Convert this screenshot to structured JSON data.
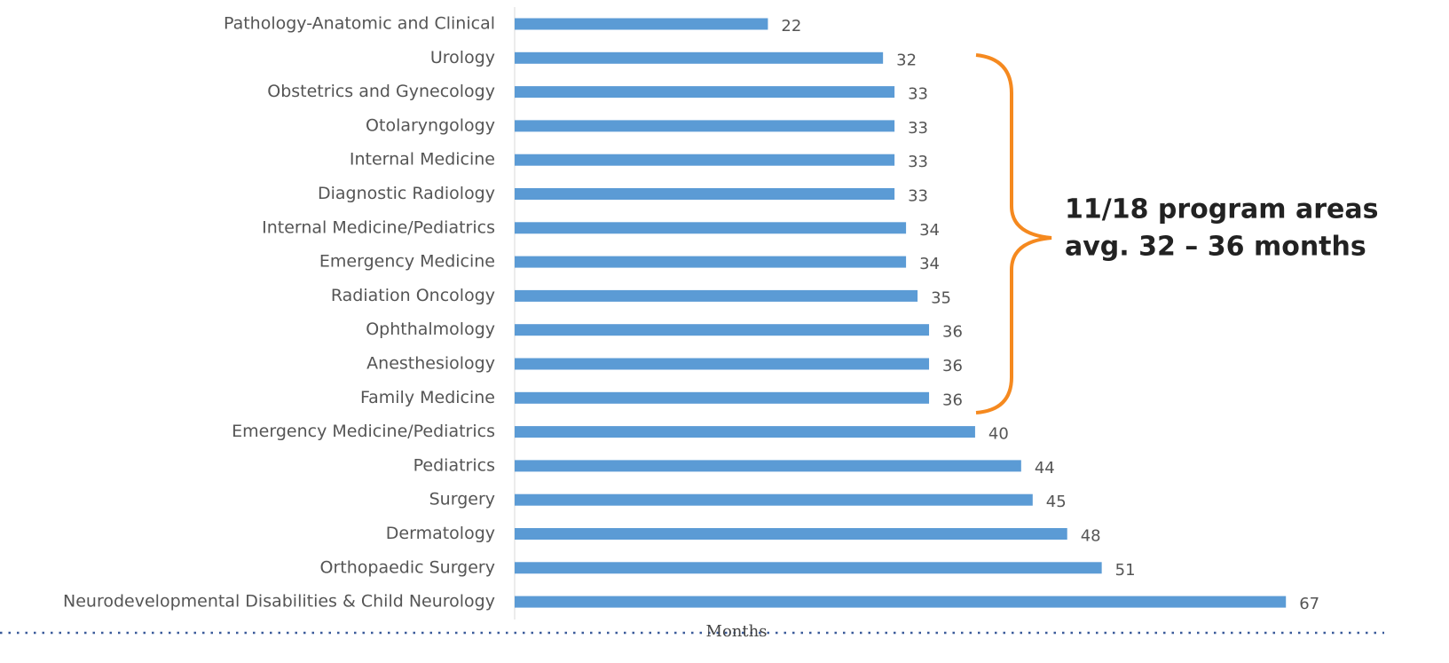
{
  "chart_data": {
    "type": "bar",
    "orientation": "horizontal",
    "categories": [
      "Pathology-Anatomic and Clinical",
      "Urology",
      "Obstetrics and Gynecology",
      "Otolaryngology",
      "Internal Medicine",
      "Diagnostic Radiology",
      "Internal Medicine/Pediatrics",
      "Emergency Medicine",
      "Radiation Oncology",
      "Ophthalmology",
      "Anesthesiology",
      "Family Medicine",
      "Emergency Medicine/Pediatrics",
      "Pediatrics",
      "Surgery",
      "Dermatology",
      "Orthopaedic Surgery",
      "Neurodevelopmental Disabilities & Child Neurology"
    ],
    "values": [
      22,
      32,
      33,
      33,
      33,
      33,
      34,
      34,
      35,
      36,
      36,
      36,
      40,
      44,
      45,
      48,
      51,
      67
    ],
    "color": "#5b9bd5",
    "xlim": [
      0,
      75
    ],
    "xlabel": "Months",
    "annotations": [
      "11/18 program areas",
      "avg. 32 – 36 months"
    ],
    "annotation_color": "#f5891f"
  }
}
